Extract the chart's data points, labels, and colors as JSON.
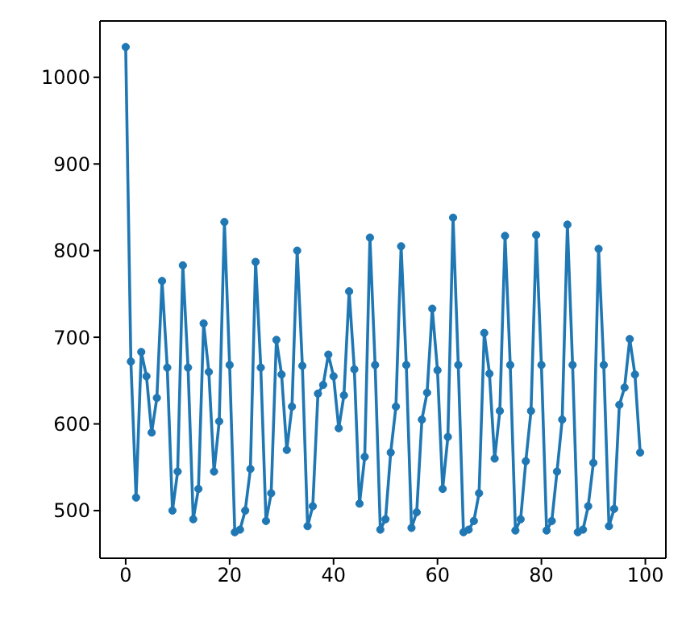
{
  "chart_data": {
    "type": "line",
    "x": [
      0,
      1,
      2,
      3,
      4,
      5,
      6,
      7,
      8,
      9,
      10,
      11,
      12,
      13,
      14,
      15,
      16,
      17,
      18,
      19,
      20,
      21,
      22,
      23,
      24,
      25,
      26,
      27,
      28,
      29,
      30,
      31,
      32,
      33,
      34,
      35,
      36,
      37,
      38,
      39,
      40,
      41,
      42,
      43,
      44,
      45,
      46,
      47,
      48,
      49,
      50,
      51,
      52,
      53,
      54,
      55,
      56,
      57,
      58,
      59,
      60,
      61,
      62,
      63,
      64,
      65,
      66,
      67,
      68,
      69,
      70,
      71,
      72,
      73,
      74,
      75,
      76,
      77,
      78,
      79,
      80,
      81,
      82,
      83,
      84,
      85,
      86,
      87,
      88,
      89,
      90,
      91,
      92,
      93,
      94,
      95,
      96,
      97,
      98,
      99
    ],
    "series": [
      {
        "color": "#1f77b4",
        "values": [
          1035,
          672,
          515,
          683,
          655,
          590,
          630,
          765,
          665,
          500,
          545,
          783,
          665,
          490,
          525,
          716,
          660,
          545,
          603,
          833,
          668,
          475,
          478,
          500,
          548,
          787,
          665,
          488,
          520,
          697,
          657,
          570,
          620,
          800,
          667,
          482,
          505,
          635,
          645,
          680,
          655,
          595,
          633,
          753,
          663,
          508,
          562,
          815,
          668,
          478,
          490,
          567,
          620,
          805,
          668,
          480,
          498,
          605,
          636,
          733,
          662,
          525,
          585,
          838,
          668,
          475,
          478,
          488,
          520,
          705,
          658,
          560,
          615,
          817,
          668,
          477,
          490,
          557,
          615,
          818,
          668,
          477,
          488,
          545,
          605,
          830,
          668,
          475,
          478,
          505,
          555,
          802,
          668,
          482,
          502,
          622,
          642,
          698,
          657,
          567
        ]
      }
    ],
    "xlim": [
      -4.95,
      103.95
    ],
    "ylim": [
      445,
      1065
    ],
    "xticks": [
      0,
      20,
      40,
      60,
      80,
      100
    ],
    "yticks": [
      500,
      600,
      700,
      800,
      900,
      1000
    ],
    "marker": "circle",
    "grid": false,
    "legend": false
  }
}
